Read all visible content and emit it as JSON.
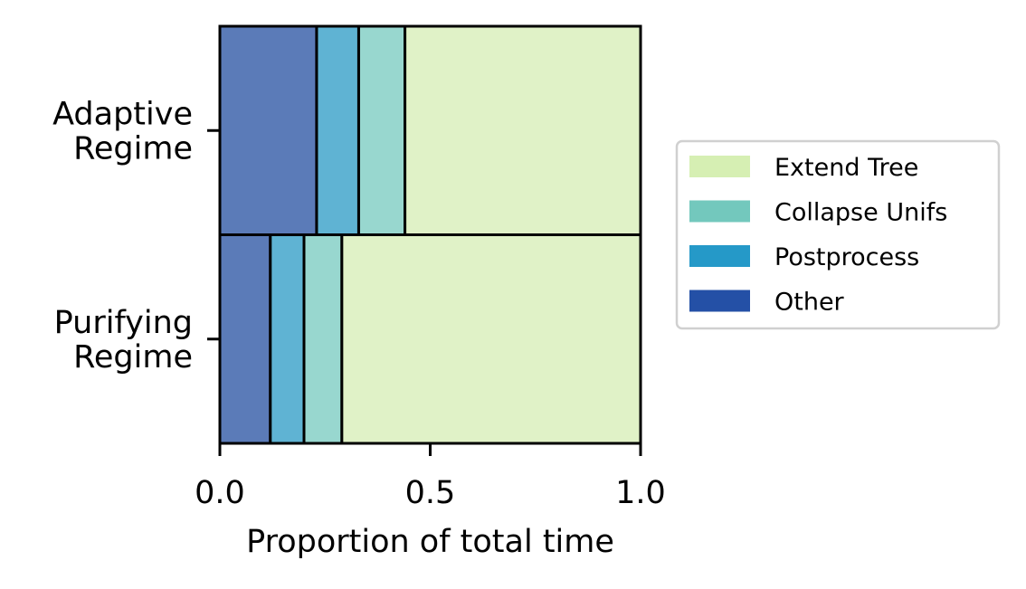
{
  "chart_data": {
    "type": "bar",
    "orientation": "horizontal",
    "stacked": true,
    "title": "",
    "xlabel": "Proportion of total time",
    "ylabel": "",
    "xlim": [
      0,
      1
    ],
    "xticks": [
      "0.0",
      "0.5",
      "1.0"
    ],
    "categories": [
      {
        "lines": [
          "Adaptive",
          "Regime"
        ]
      },
      {
        "lines": [
          "Purifying",
          "Regime"
        ]
      }
    ],
    "series": [
      {
        "name": "Other",
        "color": "#5b7bb8",
        "legend_color": "#2450a6",
        "values": [
          0.23,
          0.12
        ]
      },
      {
        "name": "Postprocess",
        "color": "#5fb3d3",
        "legend_color": "#2599c8",
        "values": [
          0.1,
          0.08
        ]
      },
      {
        "name": "Collapse Unifs",
        "color": "#98d7cf",
        "legend_color": "#73c8bd",
        "values": [
          0.11,
          0.09
        ]
      },
      {
        "name": "Extend Tree",
        "color": "#e0f2c7",
        "legend_color": "#d6efb3",
        "values": [
          0.56,
          0.71
        ]
      }
    ],
    "legend": {
      "placement": "right",
      "order": [
        "Extend Tree",
        "Collapse Unifs",
        "Postprocess",
        "Other"
      ]
    },
    "grid": false
  }
}
